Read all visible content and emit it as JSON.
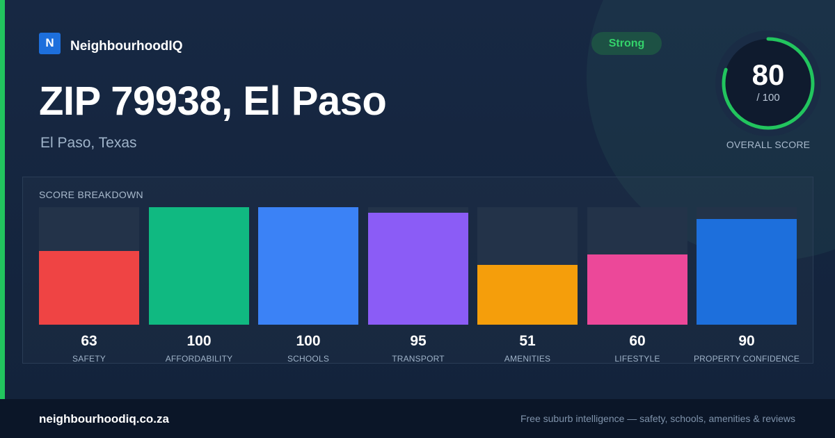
{
  "brand": {
    "logo_letter": "N",
    "name": "NeighbourhoodIQ"
  },
  "location": {
    "title": "ZIP 79938, El Paso",
    "subtitle": "El Paso, Texas"
  },
  "badge": {
    "label": "Strong",
    "color": "#34d36b"
  },
  "overall": {
    "score": 80,
    "max_label": "/ 100",
    "label": "OVERALL SCORE",
    "max": 100,
    "color": "#22c55e"
  },
  "breakdown": {
    "title": "SCORE BREAKDOWN",
    "items": [
      {
        "label": "SAFETY",
        "value": 63,
        "color": "#ef4444"
      },
      {
        "label": "AFFORDABILITY",
        "value": 100,
        "color": "#10b981"
      },
      {
        "label": "SCHOOLS",
        "value": 100,
        "color": "#3b82f6"
      },
      {
        "label": "TRANSPORT",
        "value": 95,
        "color": "#8b5cf6"
      },
      {
        "label": "AMENITIES",
        "value": 51,
        "color": "#f59e0b"
      },
      {
        "label": "LIFESTYLE",
        "value": 60,
        "color": "#ec4899"
      },
      {
        "label": "PROPERTY CONFIDENCE",
        "value": 90,
        "color": "#1d6fdc"
      }
    ]
  },
  "footer": {
    "url": "neighbourhoodiq.co.za",
    "tagline": "Free suburb intelligence — safety, schools, amenities & reviews"
  }
}
